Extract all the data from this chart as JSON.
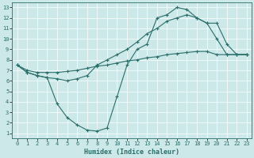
{
  "xlabel": "Humidex (Indice chaleur)",
  "bg_color": "#cce8e8",
  "line_color": "#2a6e6a",
  "xlim": [
    -0.5,
    23.5
  ],
  "ylim": [
    0.5,
    13.5
  ],
  "xticks": [
    0,
    1,
    2,
    3,
    4,
    5,
    6,
    7,
    8,
    9,
    10,
    11,
    12,
    13,
    14,
    15,
    16,
    17,
    18,
    19,
    20,
    21,
    22,
    23
  ],
  "yticks": [
    1,
    2,
    3,
    4,
    5,
    6,
    7,
    8,
    9,
    10,
    11,
    12,
    13
  ],
  "line1_x": [
    0,
    1,
    2,
    3,
    4,
    5,
    6,
    7,
    8,
    9,
    10,
    11,
    12,
    13,
    14,
    15,
    16,
    17,
    18,
    19,
    20,
    21,
    22,
    23
  ],
  "line1_y": [
    7.5,
    6.8,
    6.5,
    6.3,
    3.8,
    2.5,
    1.8,
    1.3,
    1.2,
    1.5,
    4.5,
    7.5,
    9.0,
    9.5,
    12.0,
    12.3,
    13.0,
    12.8,
    12.0,
    11.5,
    10.0,
    8.5,
    8.5,
    8.5
  ],
  "line2_x": [
    0,
    1,
    2,
    3,
    4,
    5,
    6,
    7,
    8,
    9,
    10,
    11,
    12,
    13,
    14,
    15,
    16,
    17,
    18,
    19,
    20,
    21,
    22,
    23
  ],
  "line2_y": [
    7.5,
    6.8,
    6.5,
    6.3,
    6.2,
    6.0,
    6.2,
    6.5,
    7.5,
    8.0,
    8.5,
    9.0,
    9.7,
    10.5,
    11.0,
    11.7,
    12.0,
    12.3,
    12.0,
    11.5,
    11.5,
    9.5,
    8.5,
    8.5
  ],
  "line3_x": [
    0,
    1,
    2,
    3,
    4,
    5,
    6,
    7,
    8,
    9,
    10,
    11,
    12,
    13,
    14,
    15,
    16,
    17,
    18,
    19,
    20,
    21,
    22,
    23
  ],
  "line3_y": [
    7.5,
    7.0,
    6.8,
    6.8,
    6.8,
    6.9,
    7.0,
    7.2,
    7.4,
    7.5,
    7.7,
    7.9,
    8.0,
    8.2,
    8.3,
    8.5,
    8.6,
    8.7,
    8.8,
    8.8,
    8.5,
    8.5,
    8.5,
    8.5
  ],
  "tick_fontsize": 5,
  "xlabel_fontsize": 6
}
